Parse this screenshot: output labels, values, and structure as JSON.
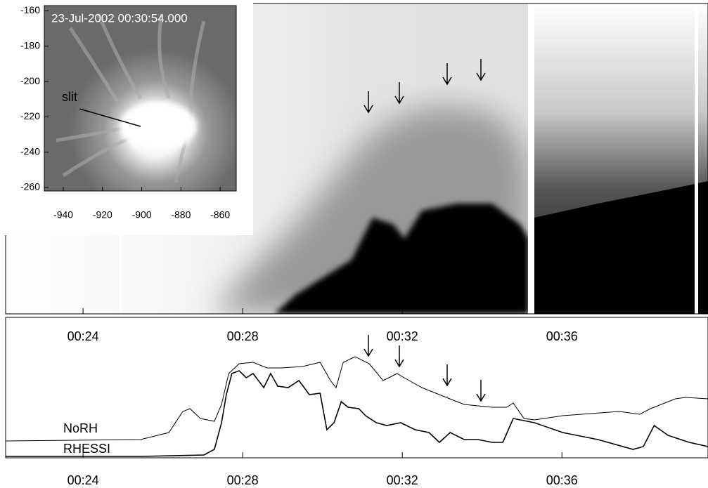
{
  "inset": {
    "title": "23-Jul-2002 00:30:54.000",
    "slit_label": "slit",
    "xlim": [
      -949.7,
      -851.8
    ],
    "xticks": [
      -940,
      -920,
      -900,
      -880,
      -860
    ],
    "ylim": [
      -262,
      -157
    ],
    "yticks": [
      -160,
      -180,
      -200,
      -220,
      -240,
      -260
    ]
  },
  "chart_data": {
    "type": "line",
    "xlim": [
      22.06,
      39.66
    ],
    "xticks": [
      {
        "value": 24,
        "label": "00:24"
      },
      {
        "value": 28,
        "label": "00:28"
      },
      {
        "value": 32,
        "label": "00:32"
      },
      {
        "value": 36,
        "label": "00:36"
      }
    ],
    "ylim": [
      0,
      1
    ],
    "series": [
      {
        "name": "NoRH",
        "color": "#000000",
        "x": [
          22.06,
          25.44,
          26.15,
          26.5,
          26.68,
          26.94,
          27.29,
          27.47,
          27.65,
          27.91,
          28.26,
          28.61,
          28.97,
          29.5,
          29.94,
          30.2,
          30.34,
          30.52,
          30.82,
          31.17,
          31.52,
          31.87,
          32.05,
          32.49,
          33.19,
          33.55,
          34.25,
          34.61,
          34.78,
          35.05,
          35.31,
          36.02,
          37.43,
          37.95,
          38.22,
          38.84,
          39.1,
          39.66
        ],
        "values": [
          0.12,
          0.13,
          0.18,
          0.33,
          0.35,
          0.28,
          0.26,
          0.38,
          0.6,
          0.67,
          0.68,
          0.64,
          0.64,
          0.65,
          0.68,
          0.55,
          0.5,
          0.68,
          0.72,
          0.67,
          0.55,
          0.6,
          0.57,
          0.5,
          0.42,
          0.38,
          0.36,
          0.36,
          0.39,
          0.28,
          0.27,
          0.3,
          0.33,
          0.31,
          0.35,
          0.42,
          0.43,
          0.42
        ]
      },
      {
        "name": "RHESSI",
        "color": "#000000",
        "x": [
          22.06,
          25.44,
          27.03,
          27.29,
          27.47,
          27.59,
          27.73,
          27.91,
          28.09,
          28.26,
          28.53,
          28.7,
          28.88,
          29.14,
          29.41,
          29.67,
          29.94,
          30.11,
          30.29,
          30.47,
          30.64,
          30.91,
          31.08,
          31.35,
          31.61,
          31.96,
          32.32,
          32.67,
          32.93,
          33.2,
          33.55,
          33.9,
          34.25,
          34.52,
          34.78,
          35.31,
          36.02,
          36.9,
          37.78,
          38.04,
          38.31,
          38.66,
          39.19,
          39.66
        ],
        "values": [
          0.01,
          0.01,
          0.02,
          0.06,
          0.25,
          0.45,
          0.6,
          0.62,
          0.57,
          0.6,
          0.5,
          0.6,
          0.51,
          0.5,
          0.55,
          0.45,
          0.46,
          0.2,
          0.25,
          0.4,
          0.36,
          0.35,
          0.3,
          0.25,
          0.23,
          0.25,
          0.2,
          0.18,
          0.11,
          0.18,
          0.13,
          0.13,
          0.11,
          0.11,
          0.28,
          0.25,
          0.18,
          0.13,
          0.06,
          0.08,
          0.23,
          0.16,
          0.11,
          0.08
        ]
      }
    ]
  }
}
